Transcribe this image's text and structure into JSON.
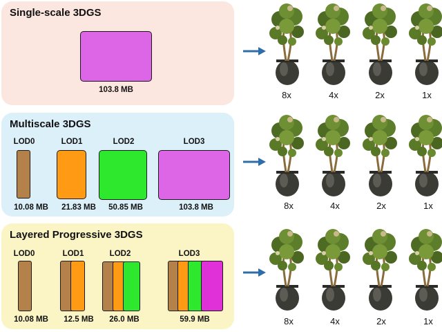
{
  "colors": {
    "lod0": "#b5814a",
    "lod1": "#ff9a14",
    "lod2": "#2ee82e",
    "lod3_single": "#dd66e6",
    "lod3_layer": "#e030d8",
    "arrow": "#2e6ea8",
    "panel_single": "#fbe7df",
    "panel_multi": "#dcf0fa",
    "panel_layered": "#fbf5c6"
  },
  "panels": {
    "single": {
      "title": "Single-scale 3DGS",
      "size": "103.8 MB"
    },
    "multi": {
      "title": "Multiscale 3DGS",
      "lods": [
        {
          "label": "LOD0",
          "size": "10.08 MB"
        },
        {
          "label": "LOD1",
          "size": "21.83 MB"
        },
        {
          "label": "LOD2",
          "size": "50.85 MB"
        },
        {
          "label": "LOD3",
          "size": "103.8 MB"
        }
      ]
    },
    "layered": {
      "title": "Layered Progressive 3DGS",
      "lods": [
        {
          "label": "LOD0",
          "size": "10.08 MB"
        },
        {
          "label": "LOD1",
          "size": "12.5 MB"
        },
        {
          "label": "LOD2",
          "size": "26.0 MB"
        },
        {
          "label": "LOD3",
          "size": "59.9 MB"
        }
      ]
    }
  },
  "scales": [
    "8x",
    "4x",
    "2x",
    "1x"
  ],
  "icons": {
    "arrow": "right-arrow-icon",
    "tree": "potted-tree-icon"
  }
}
